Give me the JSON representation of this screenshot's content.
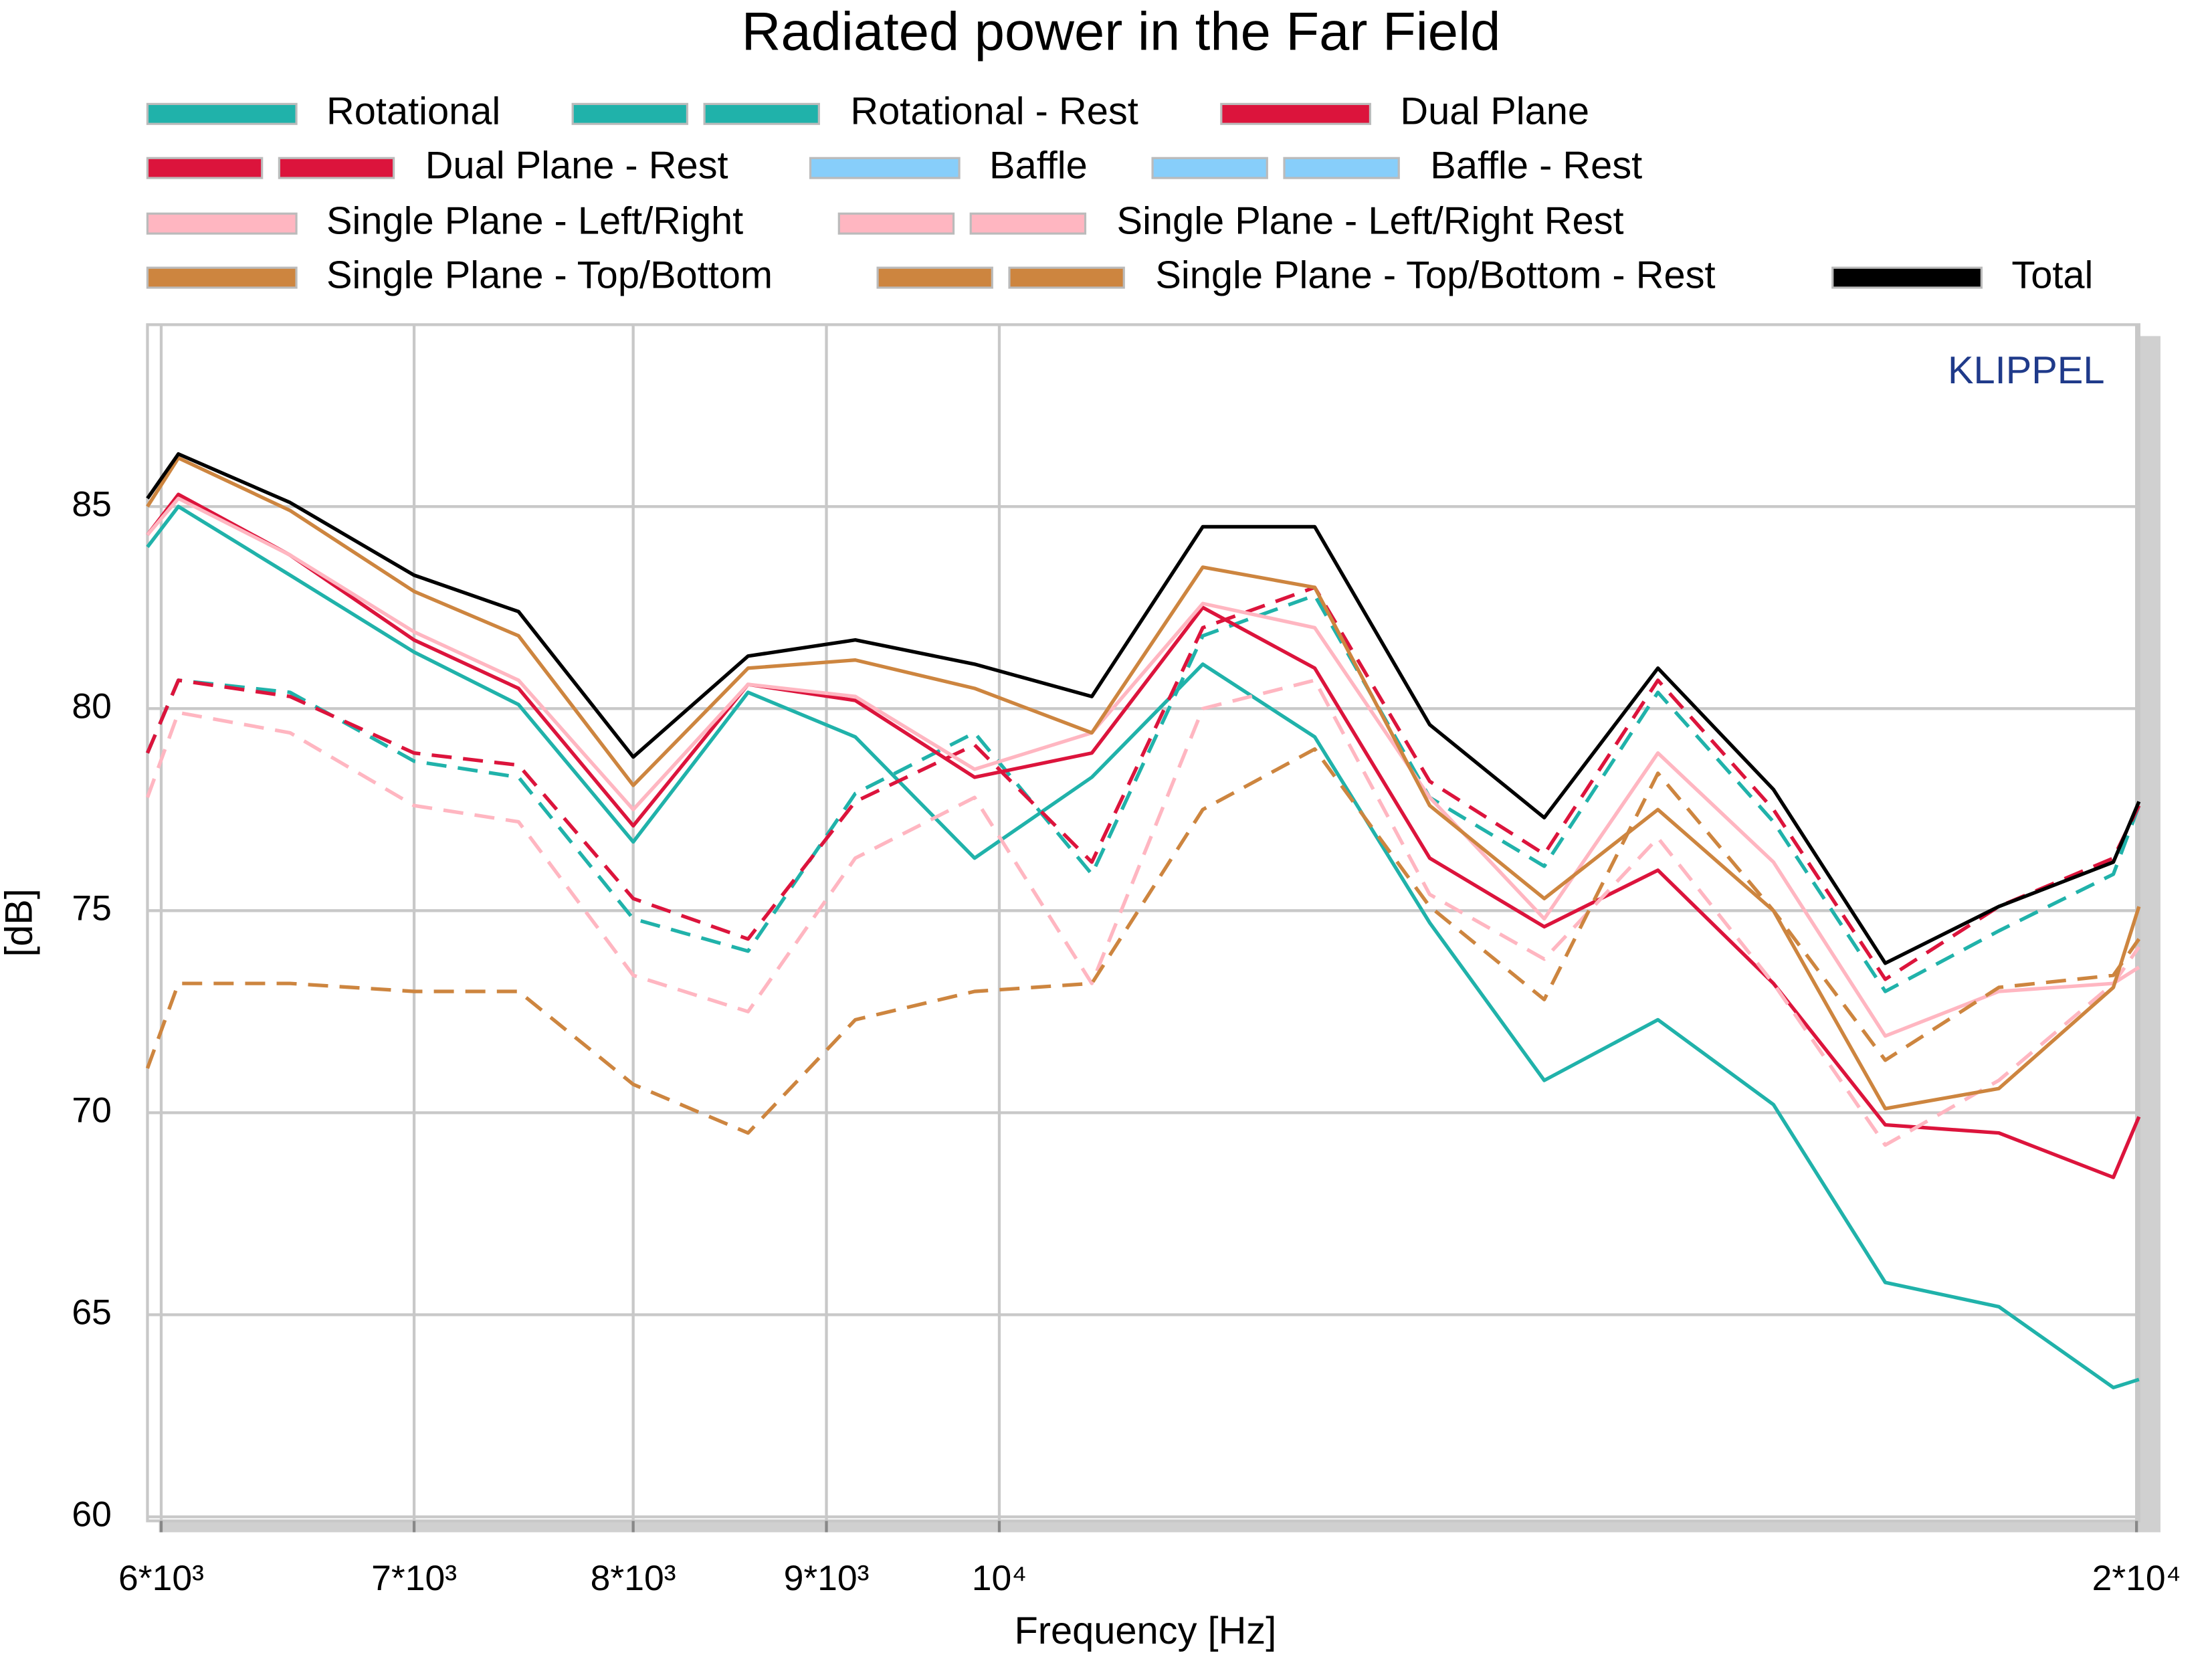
{
  "chart_data": {
    "type": "line",
    "title": "Radiated power in the Far Field",
    "xlabel": "Frequency [Hz]",
    "ylabel": "[dB]",
    "annotation": "KLIPPEL",
    "xscale": "log",
    "grid": true,
    "x": [
      5950,
      6063,
      6490,
      7000,
      7460,
      8000,
      8580,
      9160,
      9850,
      10580,
      11320,
      12120,
      13000,
      13940,
      14940,
      16030,
      17160,
      18390,
      19720,
      20030
    ],
    "xlim": [
      5950,
      20030
    ],
    "xticks": [
      {
        "value": 6000,
        "label": "6*10³"
      },
      {
        "value": 7000,
        "label": "7*10³"
      },
      {
        "value": 8000,
        "label": "8*10³"
      },
      {
        "value": 9000,
        "label": "9*10³"
      },
      {
        "value": 10000,
        "label": "10⁴"
      },
      {
        "value": 20000,
        "label": "2*10⁴"
      }
    ],
    "ylim": [
      59.9,
      89.5
    ],
    "yticks": [
      60,
      65,
      70,
      75,
      80,
      85
    ],
    "series": [
      {
        "name": "Rotational",
        "color": "#20b2aa",
        "dashed": false,
        "values": [
          84.0,
          85.0,
          83.3,
          81.4,
          80.1,
          76.7,
          80.4,
          79.3,
          76.3,
          78.3,
          81.1,
          79.3,
          74.7,
          70.8,
          72.3,
          70.2,
          65.8,
          65.2,
          63.2,
          63.4
        ]
      },
      {
        "name": "Rotational - Rest",
        "color": "#20b2aa",
        "dashed": true,
        "values": [
          78.9,
          80.7,
          80.4,
          78.7,
          78.3,
          74.8,
          74.0,
          77.9,
          79.4,
          75.9,
          81.8,
          82.8,
          77.8,
          76.1,
          80.4,
          77.2,
          73.0,
          74.5,
          75.9,
          77.6
        ]
      },
      {
        "name": "Dual Plane",
        "color": "#dc143c",
        "dashed": false,
        "values": [
          84.3,
          85.3,
          83.8,
          81.7,
          80.5,
          77.1,
          80.6,
          80.2,
          78.3,
          78.9,
          82.5,
          81.0,
          76.3,
          74.6,
          76.0,
          73.2,
          69.7,
          69.5,
          68.4,
          69.9
        ]
      },
      {
        "name": "Dual Plane - Rest",
        "color": "#dc143c",
        "dashed": true,
        "values": [
          78.9,
          80.7,
          80.3,
          78.9,
          78.6,
          75.3,
          74.3,
          77.7,
          79.1,
          76.2,
          82.0,
          83.0,
          78.2,
          76.4,
          80.7,
          77.5,
          73.3,
          75.1,
          76.3,
          77.6
        ]
      },
      {
        "name": "Baffle",
        "color": "#87cefa",
        "dashed": false,
        "values": [
          null,
          null,
          null,
          null,
          null,
          null,
          null,
          null,
          null,
          null,
          null,
          null,
          null,
          null,
          null,
          null,
          null,
          null,
          null,
          null
        ]
      },
      {
        "name": "Baffle - Rest",
        "color": "#87cefa",
        "dashed": true,
        "values": [
          null,
          null,
          null,
          null,
          null,
          null,
          null,
          null,
          null,
          null,
          null,
          null,
          null,
          null,
          null,
          null,
          null,
          null,
          null,
          null
        ]
      },
      {
        "name": "Single Plane - Left/Right",
        "color": "#ffb6c1",
        "dashed": false,
        "values": [
          84.3,
          85.2,
          83.8,
          81.9,
          80.7,
          77.5,
          80.6,
          80.3,
          78.5,
          79.4,
          82.6,
          82.0,
          77.8,
          74.8,
          78.9,
          76.2,
          71.9,
          73.0,
          73.2,
          73.6
        ]
      },
      {
        "name": "Single Plane - Left/Right Rest",
        "color": "#ffb6c1",
        "dashed": true,
        "values": [
          77.8,
          79.9,
          79.4,
          77.6,
          77.2,
          73.4,
          72.5,
          76.3,
          77.8,
          73.2,
          80.0,
          80.7,
          75.4,
          73.8,
          76.8,
          73.2,
          69.2,
          70.8,
          73.2,
          74.1
        ]
      },
      {
        "name": "Single Plane - Top/Bottom",
        "color": "#cd853f",
        "dashed": false,
        "values": [
          85.0,
          86.2,
          84.9,
          82.9,
          81.8,
          78.1,
          81.0,
          81.2,
          80.5,
          79.4,
          83.5,
          83.0,
          77.6,
          75.3,
          77.5,
          75.0,
          70.1,
          70.6,
          73.1,
          75.1
        ]
      },
      {
        "name": "Single Plane - Top/Bottom - Rest",
        "color": "#cd853f",
        "dashed": true,
        "values": [
          71.1,
          73.2,
          73.2,
          73.0,
          73.0,
          70.7,
          69.5,
          72.3,
          73.0,
          73.2,
          77.5,
          79.0,
          75.1,
          72.8,
          78.4,
          75.0,
          71.3,
          73.1,
          73.4,
          74.3
        ]
      },
      {
        "name": "Total",
        "color": "#000000",
        "dashed": false,
        "values": [
          85.2,
          86.3,
          85.1,
          83.3,
          82.4,
          78.8,
          81.3,
          81.7,
          81.1,
          80.3,
          84.5,
          84.5,
          79.6,
          77.3,
          81.0,
          78.0,
          73.7,
          75.1,
          76.2,
          77.7
        ]
      }
    ]
  }
}
